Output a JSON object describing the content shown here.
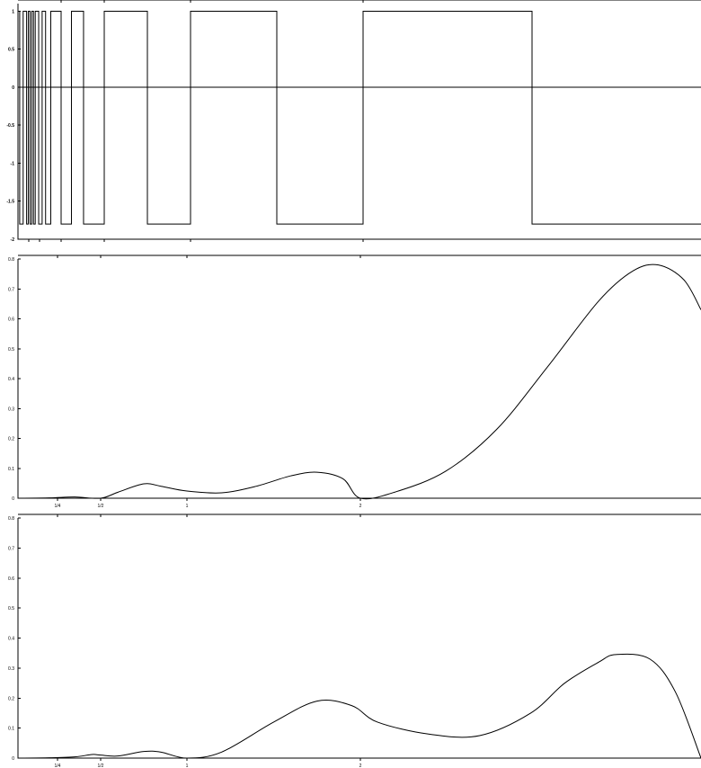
{
  "chart_data": [
    {
      "type": "line",
      "x_ticks": [
        "1/4",
        "1/2",
        "1",
        "2"
      ],
      "y_ticks": [
        "1",
        "0.5",
        "0",
        "-0.5",
        "-1",
        "-1.5",
        "-2"
      ],
      "ylim": [
        -2,
        1.1
      ],
      "series": [
        {
          "values": [
            [
              0.0,
              1
            ],
            [
              0.01,
              -1.8
            ],
            [
              0.03,
              1
            ],
            [
              0.05,
              -1.8
            ],
            [
              0.06,
              1
            ],
            [
              0.07,
              -1.8
            ],
            [
              0.08,
              1
            ],
            [
              0.09,
              -1.8
            ],
            [
              0.1,
              1
            ],
            [
              0.12,
              -1.8
            ],
            [
              0.14,
              1
            ],
            [
              0.16,
              -1.8
            ],
            [
              0.19,
              1
            ],
            [
              0.25,
              -1.8
            ],
            [
              0.31,
              1
            ],
            [
              0.38,
              -1.8
            ],
            [
              0.5,
              1
            ],
            [
              0.75,
              -1.8
            ],
            [
              1.0,
              1
            ],
            [
              1.5,
              -1.8
            ],
            [
              2.0,
              1
            ],
            [
              3.0,
              -1.8
            ],
            [
              4.0,
              -1.8
            ]
          ]
        }
      ]
    },
    {
      "type": "line",
      "x_ticks": [
        "1/4",
        "1/2",
        "1",
        "2"
      ],
      "y_ticks": [
        "0.8",
        "0.7",
        "0.6",
        "0.5",
        "0.4",
        "0.3",
        "0.2",
        "0.1",
        "0"
      ],
      "ylim": [
        0,
        0.8
      ],
      "series": [
        {
          "values": [
            [
              0.0,
              0
            ],
            [
              0.2,
              0.001
            ],
            [
              0.35,
              0.004
            ],
            [
              0.5,
              0.0
            ],
            [
              0.6,
              0.02
            ],
            [
              0.75,
              0.048
            ],
            [
              0.85,
              0.04
            ],
            [
              1.0,
              0.024
            ],
            [
              1.2,
              0.018
            ],
            [
              1.4,
              0.04
            ],
            [
              1.6,
              0.075
            ],
            [
              1.75,
              0.087
            ],
            [
              1.9,
              0.065
            ],
            [
              2.0,
              0.0
            ],
            [
              2.2,
              0.02
            ],
            [
              2.5,
              0.09
            ],
            [
              2.8,
              0.23
            ],
            [
              3.1,
              0.44
            ],
            [
              3.4,
              0.66
            ],
            [
              3.6,
              0.76
            ],
            [
              3.75,
              0.78
            ],
            [
              3.9,
              0.73
            ],
            [
              4.0,
              0.63
            ]
          ]
        }
      ]
    },
    {
      "type": "line",
      "x_ticks": [
        "1/4",
        "1/2",
        "1",
        "2"
      ],
      "y_ticks": [
        "0.8",
        "0.7",
        "0.6",
        "0.5",
        "0.4",
        "0.3",
        "0.2",
        "0.1",
        "0"
      ],
      "ylim": [
        0,
        0.8
      ],
      "series": [
        {
          "values": [
            [
              0.0,
              0
            ],
            [
              0.2,
              0.001
            ],
            [
              0.35,
              0.004
            ],
            [
              0.45,
              0.012
            ],
            [
              0.5,
              0.01
            ],
            [
              0.6,
              0.007
            ],
            [
              0.75,
              0.022
            ],
            [
              0.85,
              0.02
            ],
            [
              1.0,
              0.0
            ],
            [
              1.2,
              0.02
            ],
            [
              1.5,
              0.12
            ],
            [
              1.75,
              0.19
            ],
            [
              1.95,
              0.175
            ],
            [
              2.1,
              0.12
            ],
            [
              2.4,
              0.08
            ],
            [
              2.7,
              0.075
            ],
            [
              3.0,
              0.15
            ],
            [
              3.2,
              0.25
            ],
            [
              3.4,
              0.32
            ],
            [
              3.5,
              0.345
            ],
            [
              3.7,
              0.33
            ],
            [
              3.85,
              0.22
            ],
            [
              4.0,
              0.0
            ]
          ]
        }
      ]
    }
  ]
}
